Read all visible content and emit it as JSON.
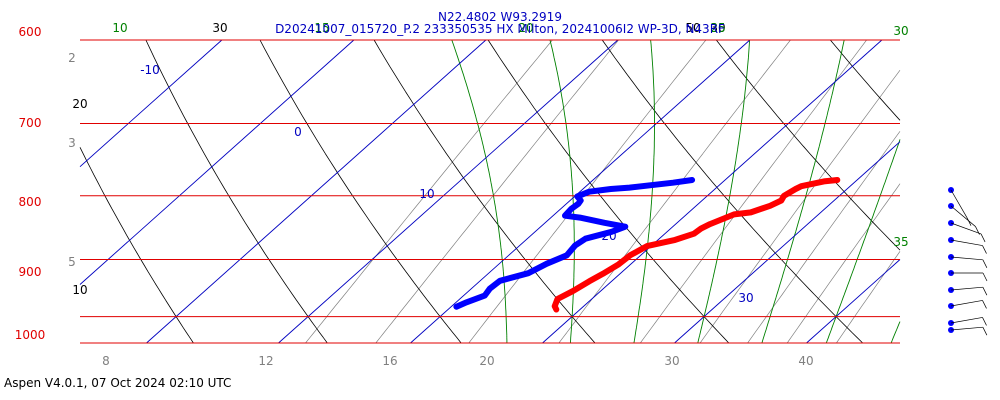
{
  "header": {
    "line1": "N22.4802 W93.2919",
    "line2": "D20241007_015720_P.2 233350535 HX Milton, 20241006I2 WP-3D, N43RF"
  },
  "footer": "Aspen V4.0.1, 07 Oct 2024  02:10 UTC",
  "colors": {
    "isobar": "#e00000",
    "isotherm": "#0000c0",
    "dry_adiabat": "#000000",
    "moist_adiabat": "#008000",
    "mixing_ratio": "#808080",
    "temperature": "#ff0000",
    "dewpoint": "#0000ff"
  },
  "chart_data": {
    "type": "line",
    "title": "Skew-T log-P sounding",
    "pressure_levels": [
      "600",
      "700",
      "800",
      "900",
      "1000"
    ],
    "isotherm_labels": [
      "-10",
      "0",
      "10",
      "20",
      "30"
    ],
    "dry_adiabat_labels": [
      "20",
      "30",
      "10",
      "50",
      "30"
    ],
    "moist_adiabat_labels": [
      "10",
      "15",
      "20",
      "25",
      "30",
      "35"
    ],
    "mixing_ratio_labels": [
      "2",
      "3",
      "5",
      "8",
      "12",
      "16",
      "20",
      "30",
      "40"
    ],
    "series": [
      {
        "name": "Temperature",
        "pressure": [
          777,
          779,
          786,
          790,
          800,
          807,
          815,
          825,
          828,
          843,
          850,
          858,
          868,
          878,
          893,
          908,
          924,
          937,
          954,
          968,
          981,
          987
        ],
        "values": [
          18.5,
          17.6,
          16.3,
          16.1,
          15.8,
          16.0,
          15.6,
          14.7,
          13.6,
          12.6,
          12.3,
          12.2,
          11.3,
          9.7,
          9.2,
          9.1,
          8.7,
          8.3,
          7.9,
          7.4,
          7.8,
          8.2
        ]
      },
      {
        "name": "Dewpoint",
        "pressure": [
          777,
          781,
          788,
          790,
          794,
          801,
          807,
          812,
          820,
          830,
          833,
          841,
          847,
          855,
          866,
          877,
          893,
          907,
          923,
          936,
          950,
          962,
          974,
          982
        ],
        "values": [
          7.5,
          6.3,
          3.4,
          2.1,
          0.7,
          0.2,
          0.8,
          0.9,
          0.8,
          0.9,
          2.2,
          4.5,
          6.4,
          5.8,
          4.4,
          4.2,
          4.4,
          3.6,
          3.0,
          1.5,
          1.4,
          1.6,
          0.8,
          0.4
        ]
      }
    ],
    "wind_barb_levels": 10
  }
}
